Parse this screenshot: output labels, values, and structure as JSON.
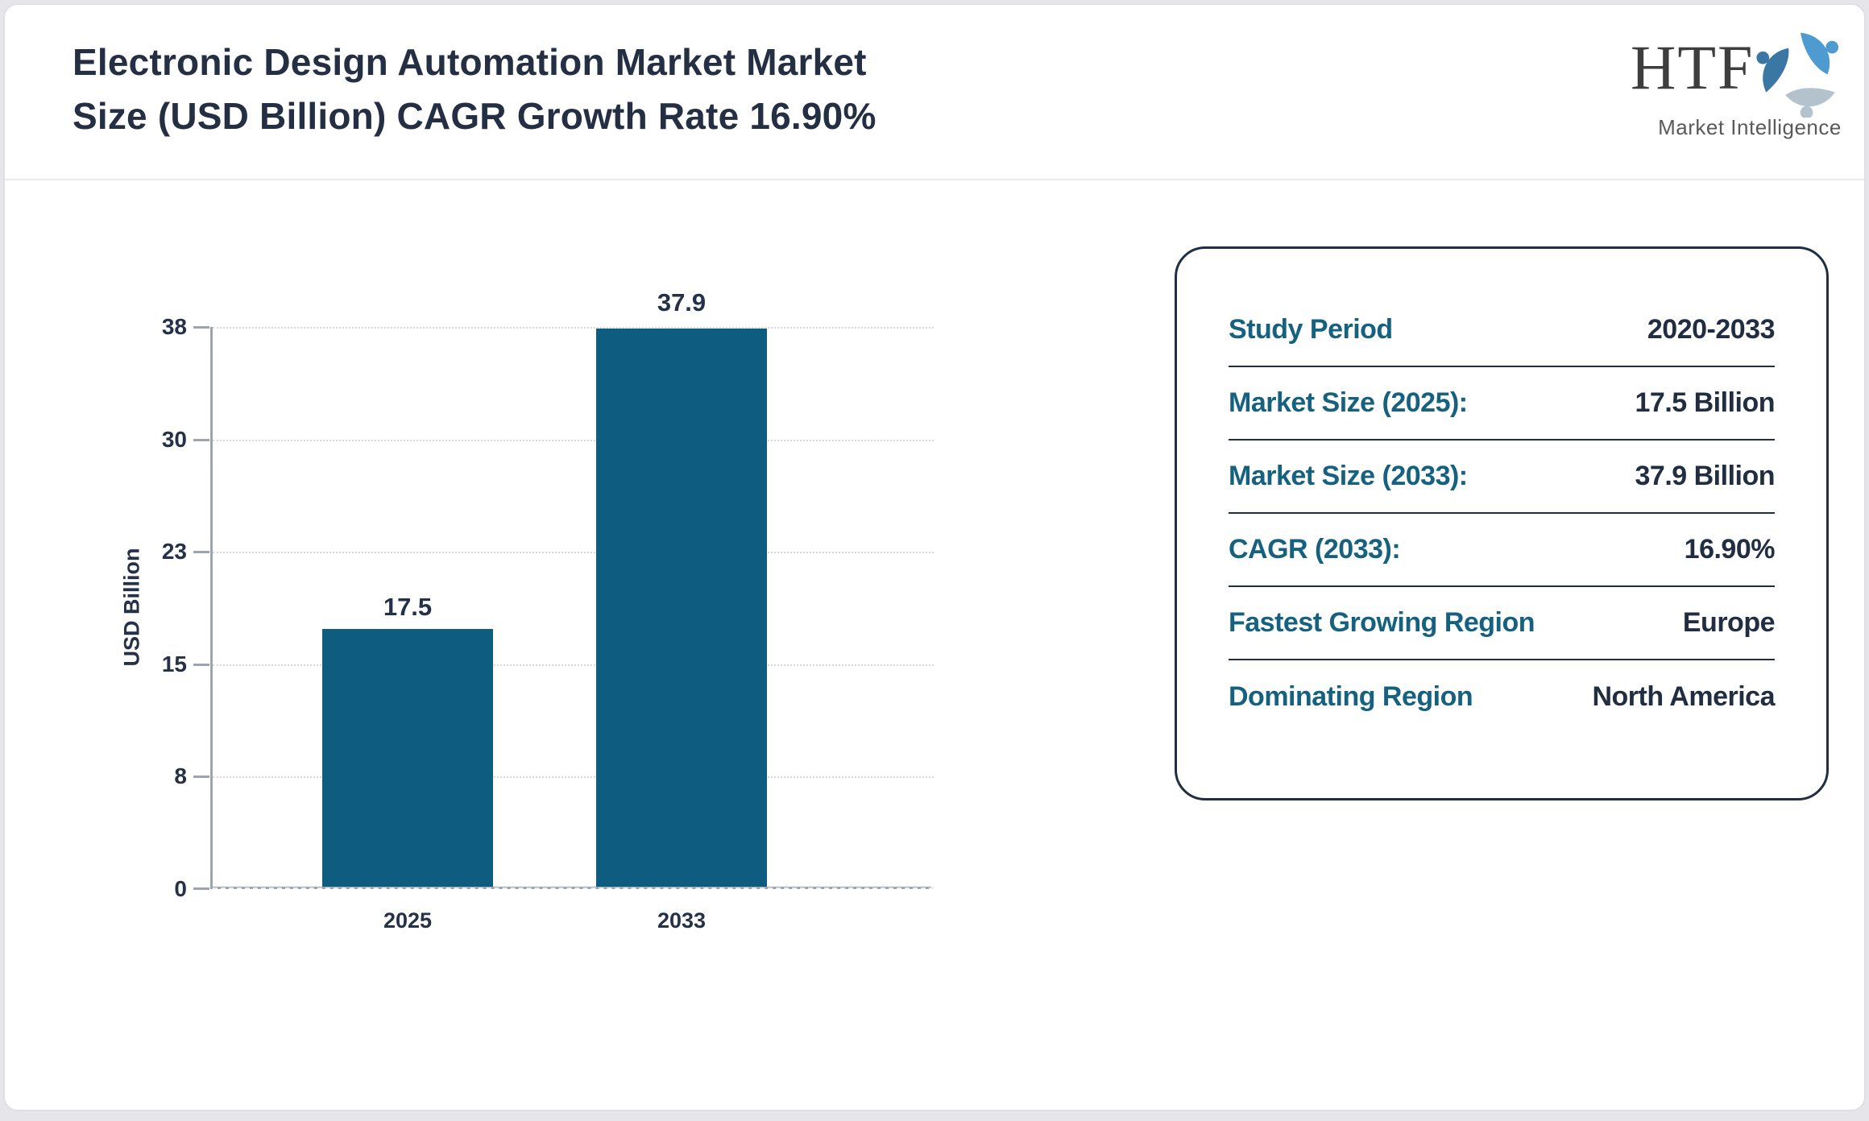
{
  "header": {
    "title_line1": "Electronic Design Automation Market Market",
    "title_line2": "Size (USD Billion) CAGR Growth Rate 16.90%",
    "logo": {
      "acronym": "HTF",
      "tagline": "Market Intelligence"
    }
  },
  "chart_data": {
    "type": "bar",
    "categories": [
      "2025",
      "2033"
    ],
    "values": [
      17.5,
      37.9
    ],
    "bar_labels": [
      "17.5",
      "37.9"
    ],
    "title": "",
    "xlabel": "",
    "ylabel": "USD Billion",
    "ylim": [
      0,
      38
    ],
    "ytick_labels": [
      "38",
      "30",
      "23",
      "15",
      "8",
      "0"
    ],
    "grid": "horizontal-dotted",
    "legend": "none",
    "bar_color": "#0e5c80"
  },
  "info_card": {
    "rows": [
      {
        "label": "Study Period",
        "value": "2020-2033"
      },
      {
        "label": "Market Size (2025):",
        "value": "17.5 Billion"
      },
      {
        "label": "Market Size (2033):",
        "value": "37.9 Billion"
      },
      {
        "label": "CAGR (2033):",
        "value": "16.90%"
      },
      {
        "label": "Fastest Growing Region",
        "value": "Europe"
      },
      {
        "label": "Dominating Region",
        "value": "North America"
      }
    ]
  },
  "colors": {
    "accent_teal": "#15617f",
    "navy": "#212e42",
    "bar": "#0e5c80",
    "swirl_light_blue": "#4d9bd0",
    "swirl_gray": "#b3c2cd",
    "swirl_dark_blue": "#3a77a5"
  }
}
